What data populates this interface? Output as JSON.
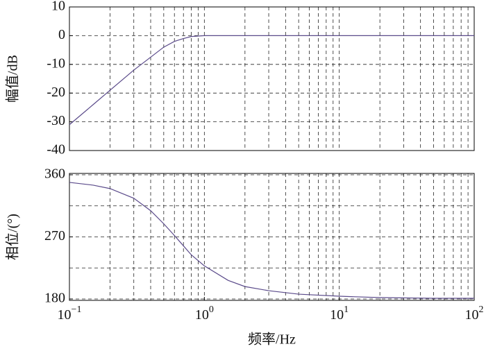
{
  "chart_data": [
    {
      "type": "line",
      "ylabel": "幅值/dB",
      "xscale": "log",
      "xlim": [
        0.1,
        100
      ],
      "ylim": [
        -40,
        10
      ],
      "yticks": [
        -40,
        -30,
        -20,
        -10,
        0,
        10
      ],
      "grid": true,
      "color": "#5a4a8a",
      "x": [
        0.1,
        0.15,
        0.2,
        0.3,
        0.4,
        0.5,
        0.6,
        0.7,
        0.8,
        1,
        2,
        10,
        100
      ],
      "series": [
        {
          "values": [
            -31,
            -24,
            -19,
            -12,
            -7.5,
            -4,
            -2,
            -1,
            -0.3,
            0,
            0,
            0,
            0
          ]
        }
      ]
    },
    {
      "type": "line",
      "ylabel": "相位/(°)",
      "xlabel": "频率/Hz",
      "xscale": "log",
      "xlim": [
        0.1,
        100
      ],
      "ylim": [
        178,
        362
      ],
      "yticks": [
        180,
        270,
        360
      ],
      "ygrid": [
        225,
        315
      ],
      "grid": true,
      "color": "#5a4a8a",
      "xticks": [
        {
          "value": 0.1,
          "label": "10",
          "exponent": "−1"
        },
        {
          "value": 1,
          "label": "10",
          "exponent": "0"
        },
        {
          "value": 10,
          "label": "10",
          "exponent": "1"
        },
        {
          "value": 100,
          "label": "10",
          "exponent": "2"
        }
      ],
      "x": [
        0.1,
        0.15,
        0.2,
        0.3,
        0.4,
        0.5,
        0.6,
        0.7,
        0.8,
        1,
        1.5,
        2,
        3,
        5,
        10,
        20,
        50,
        100
      ],
      "series": [
        {
          "values": [
            349,
            345,
            340,
            326,
            308,
            289,
            272,
            257,
            244,
            228,
            207,
            198,
            192,
            187,
            184,
            182,
            181,
            181
          ]
        }
      ]
    }
  ]
}
